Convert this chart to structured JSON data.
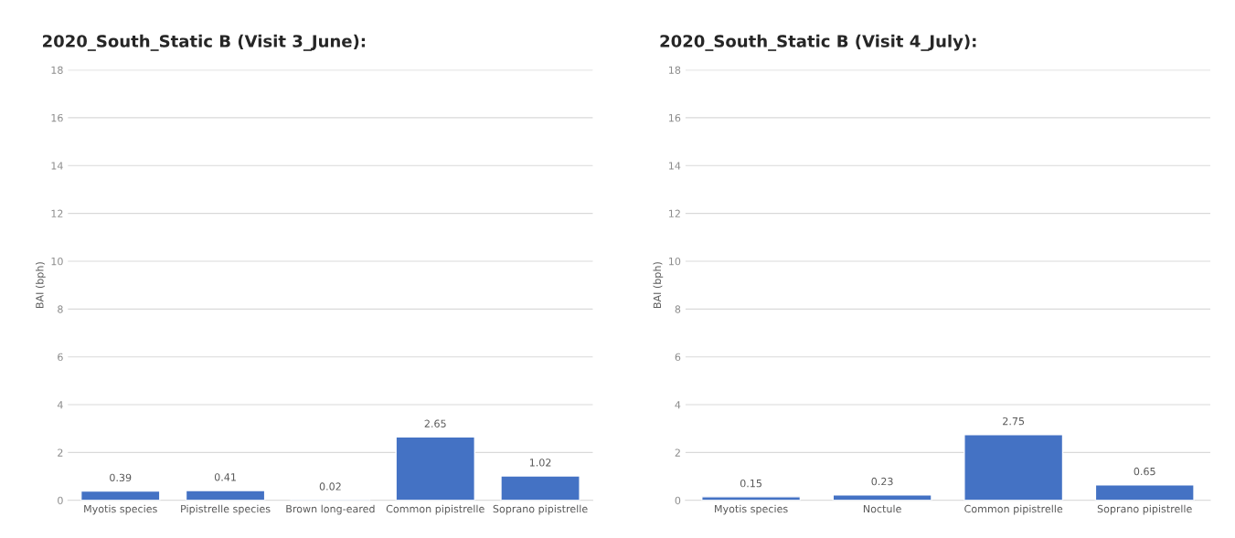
{
  "chart_data": [
    {
      "type": "bar",
      "title": "2020_South_Static B (Visit 3_June):",
      "ylabel": "BAI (bph)",
      "categories": [
        "Myotis species",
        "Pipistrelle species",
        "Brown long-eared",
        "Common pipistrelle",
        "Soprano pipistrelle"
      ],
      "values": [
        0.39,
        0.41,
        0.02,
        2.65,
        1.02
      ],
      "color": "#4472c4",
      "ylim": [
        0,
        18
      ],
      "yticks": [
        0,
        2,
        4,
        6,
        8,
        10,
        12,
        14,
        16,
        18
      ],
      "grid": "y",
      "data_labels": true
    },
    {
      "type": "bar",
      "title": "2020_South_Static B (Visit 4_July):",
      "ylabel": "BAI (bph)",
      "categories": [
        "Myotis species",
        "Noctule",
        "Common pipistrelle",
        "Soprano pipistrelle"
      ],
      "values": [
        0.15,
        0.23,
        2.75,
        0.65
      ],
      "color": "#4472c4",
      "ylim": [
        0,
        18
      ],
      "yticks": [
        0,
        2,
        4,
        6,
        8,
        10,
        12,
        14,
        16,
        18
      ],
      "grid": "y",
      "data_labels": true
    }
  ]
}
